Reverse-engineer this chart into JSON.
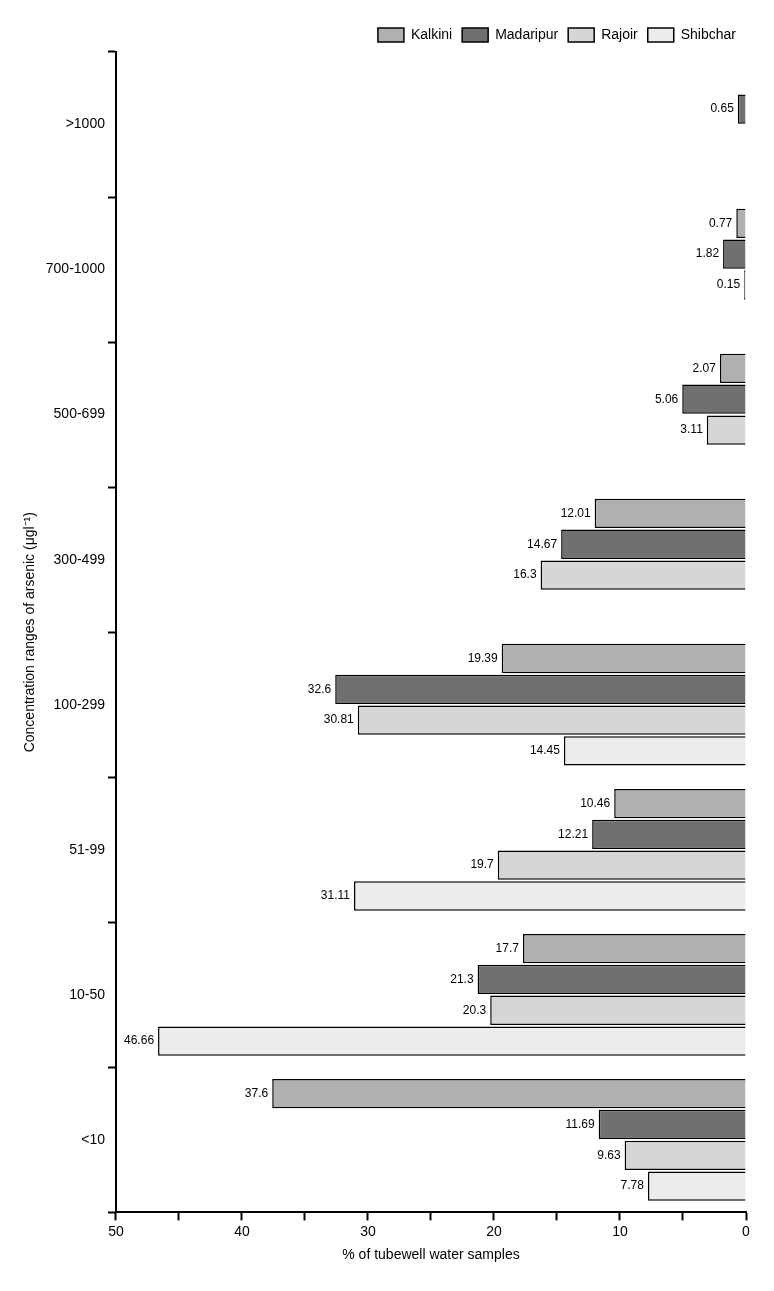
{
  "chart_data": {
    "type": "bar",
    "orientation": "horizontal",
    "ylabel": "Concentration ranges of arsenic (μgl⁻¹)",
    "xlabel": "% of tubewell water samples",
    "categories": [
      ">1000",
      "700-1000",
      "500-699",
      "300-499",
      "100-299",
      "51-99",
      "10-50",
      "<10"
    ],
    "series": [
      {
        "name": "Kalkini",
        "color": "#b0b0b0",
        "values": [
          null,
          0.77,
          2.07,
          12.01,
          19.39,
          10.46,
          17.7,
          37.6
        ]
      },
      {
        "name": "Madaripur",
        "color": "#707070",
        "values": [
          0.65,
          1.82,
          5.06,
          14.67,
          32.6,
          12.21,
          21.3,
          11.69
        ]
      },
      {
        "name": "Rajoir",
        "color": "#d6d6d6",
        "values": [
          null,
          0.15,
          3.11,
          16.3,
          30.81,
          19.7,
          20.3,
          9.63
        ]
      },
      {
        "name": "Shibchar",
        "color": "#ececec",
        "values": [
          null,
          null,
          null,
          null,
          14.45,
          31.11,
          46.66,
          7.78
        ]
      }
    ],
    "xlim": [
      50,
      0
    ],
    "xticks": [
      50,
      {
        "value": 45,
        "label": null
      },
      40,
      {
        "value": 35,
        "label": null
      },
      30,
      {
        "value": 25,
        "label": null
      },
      20,
      {
        "value": 15,
        "label": null
      },
      10,
      {
        "value": 5,
        "label": null
      },
      0
    ],
    "data_labels": true,
    "legend": "top right",
    "grid": false
  }
}
